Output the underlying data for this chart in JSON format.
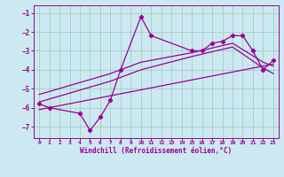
{
  "xlabel": "Windchill (Refroidissement éolien,°C)",
  "bg_color": "#cce8f0",
  "line_color": "#990099",
  "grid_color": "#99ccbb",
  "x_ticks": [
    0,
    1,
    2,
    3,
    4,
    5,
    6,
    7,
    8,
    9,
    10,
    11,
    12,
    13,
    14,
    15,
    16,
    17,
    18,
    19,
    20,
    21,
    22,
    23
  ],
  "y_ticks": [
    -7,
    -6,
    -5,
    -4,
    -3,
    -2,
    -1
  ],
  "xlim": [
    -0.5,
    23.5
  ],
  "ylim": [
    -7.6,
    -0.6
  ],
  "series": [
    {
      "x": [
        0,
        1,
        4,
        5,
        6,
        7,
        8,
        10,
        11,
        15,
        16,
        17,
        18,
        19,
        20,
        21,
        22,
        23
      ],
      "y": [
        -5.8,
        -6.0,
        -6.3,
        -7.2,
        -6.5,
        -5.6,
        -4.0,
        -1.2,
        -2.2,
        -3.0,
        -3.0,
        -2.6,
        -2.5,
        -2.2,
        -2.2,
        -3.0,
        -4.0,
        -3.5
      ]
    },
    {
      "x": [
        0,
        7,
        10,
        15,
        19,
        22,
        23
      ],
      "y": [
        -5.3,
        -4.2,
        -3.6,
        -3.1,
        -2.6,
        -3.6,
        -3.8
      ]
    },
    {
      "x": [
        0,
        7,
        10,
        15,
        19,
        22,
        23
      ],
      "y": [
        -5.7,
        -4.6,
        -4.0,
        -3.3,
        -2.8,
        -3.9,
        -4.2
      ]
    },
    {
      "x": [
        0,
        23
      ],
      "y": [
        -6.1,
        -3.7
      ]
    }
  ]
}
